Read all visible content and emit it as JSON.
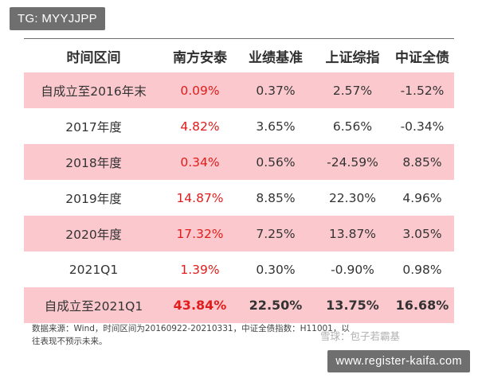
{
  "overlay": {
    "tag": "TG: MYYJJPP",
    "site": "www.register-kaifa.com",
    "watermark": "雪球：包子若霸基"
  },
  "colors": {
    "shaded_row": "#fbc9cd",
    "positive_value": "#e01c1c",
    "text": "#333333"
  },
  "table": {
    "headers": [
      "时间区间",
      "南方安泰",
      "业绩基准",
      "上证综指",
      "中证全债"
    ],
    "rows": [
      [
        "自成立至2016年末",
        "0.09%",
        "0.37%",
        "2.57%",
        "-1.52%"
      ],
      [
        "2017年度",
        "4.82%",
        "3.65%",
        "6.56%",
        "-0.34%"
      ],
      [
        "2018年度",
        "0.34%",
        "0.56%",
        "-24.59%",
        "8.85%"
      ],
      [
        "2019年度",
        "14.87%",
        "8.85%",
        "22.30%",
        "4.96%"
      ],
      [
        "2020年度",
        "17.32%",
        "7.25%",
        "13.87%",
        "3.05%"
      ],
      [
        "2021Q1",
        "1.39%",
        "0.30%",
        "-0.90%",
        "0.98%"
      ],
      [
        "自成立至2021Q1",
        "43.84%",
        "22.50%",
        "13.75%",
        "16.68%"
      ]
    ]
  },
  "footnote": {
    "line1": "数据来源：Wind，时间区间为20160922-20210331，中证全债指数：H11001，以",
    "line2": "往表现不预示未来。"
  }
}
